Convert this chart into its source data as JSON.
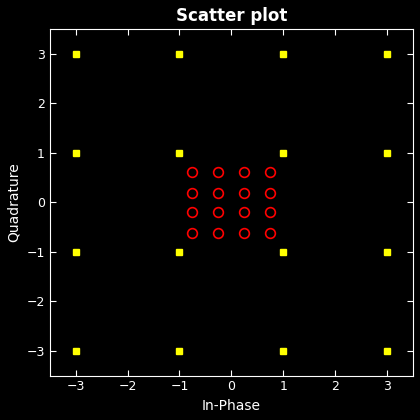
{
  "title": "Scatter plot",
  "xlabel": "In-Phase",
  "ylabel": "Quadrature",
  "background_color": "#000000",
  "text_color": "#ffffff",
  "xlim": [
    -3.5,
    3.5
  ],
  "ylim": [
    -3.5,
    3.5
  ],
  "xticks": [
    -3,
    -2,
    -1,
    0,
    1,
    2,
    3
  ],
  "yticks": [
    -3,
    -2,
    -1,
    0,
    1,
    2,
    3
  ],
  "red_circles_x": [
    -0.75,
    -0.25,
    0.25,
    0.75,
    -0.75,
    -0.25,
    0.25,
    0.75,
    -0.75,
    -0.25,
    0.25,
    0.75,
    -0.75,
    -0.25,
    0.25,
    0.75
  ],
  "red_circles_y": [
    0.625,
    0.625,
    0.625,
    0.625,
    0.2,
    0.2,
    0.2,
    0.2,
    -0.2,
    -0.2,
    -0.2,
    -0.2,
    -0.625,
    -0.625,
    -0.625,
    -0.625
  ],
  "yellow_squares_x": [
    -3,
    -1,
    1,
    3,
    -3,
    -1,
    1,
    3,
    -3,
    -1,
    1,
    3,
    -3,
    -1,
    1,
    3
  ],
  "yellow_squares_y": [
    3,
    3,
    3,
    3,
    1,
    1,
    1,
    1,
    -1,
    -1,
    -1,
    -1,
    -3,
    -3,
    -3,
    -3
  ],
  "red_marker_size": 7,
  "yellow_marker_size": 4,
  "title_fontsize": 12,
  "label_fontsize": 10,
  "tick_fontsize": 9
}
